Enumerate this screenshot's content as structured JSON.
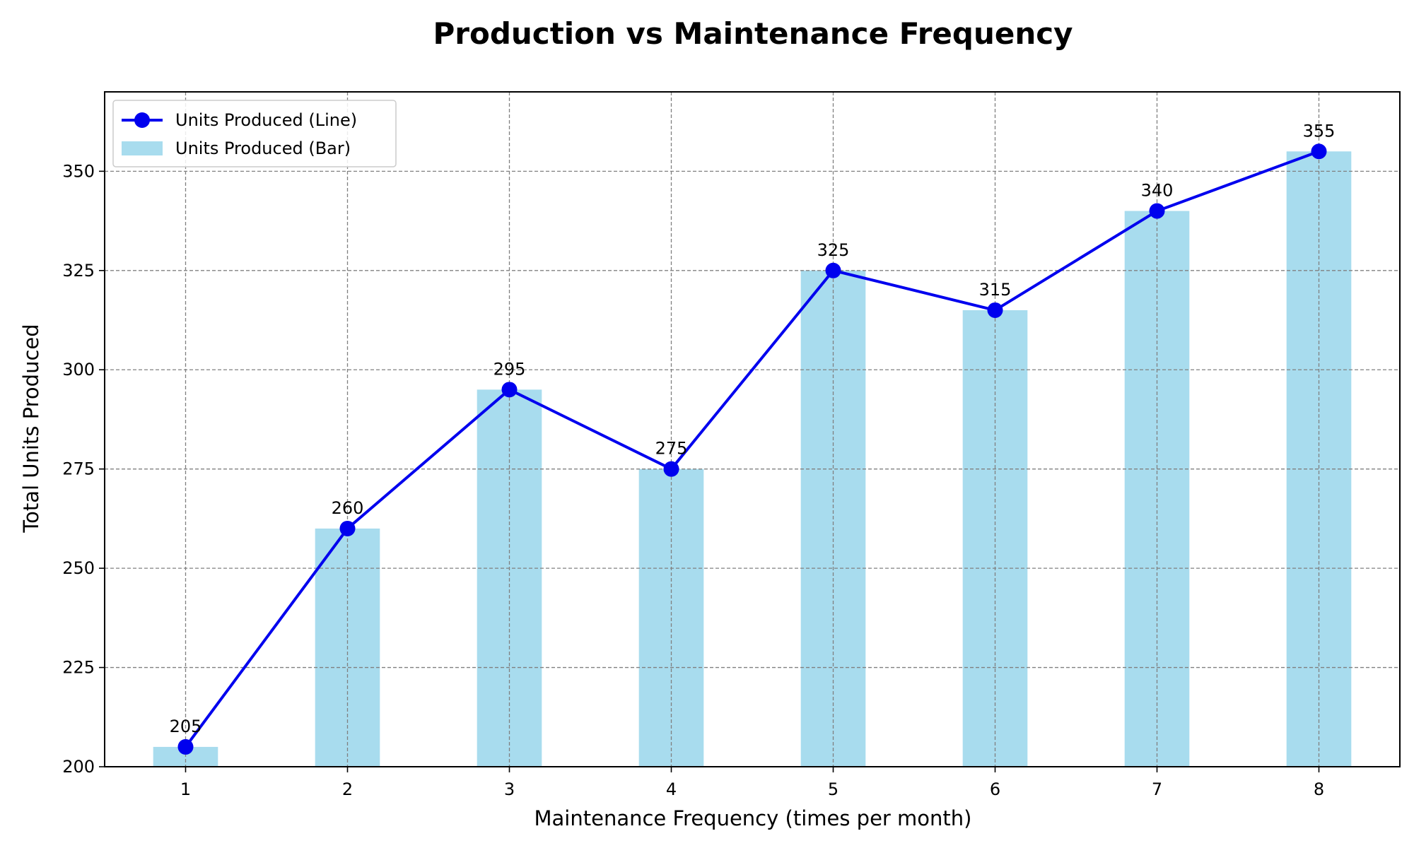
{
  "chart_data": {
    "type": "bar",
    "title": "Production vs Maintenance Frequency",
    "xlabel": "Maintenance Frequency (times per month)",
    "ylabel": "Total Units Produced",
    "categories": [
      "1",
      "2",
      "3",
      "4",
      "5",
      "6",
      "7",
      "8"
    ],
    "x": [
      1,
      2,
      3,
      4,
      5,
      6,
      7,
      8
    ],
    "series": [
      {
        "name": "Units Produced (Line)",
        "type": "line",
        "color": "#0000ee",
        "values": [
          205,
          260,
          295,
          275,
          325,
          315,
          340,
          355
        ]
      },
      {
        "name": "Units Produced (Bar)",
        "type": "bar",
        "color": "#a8dcee",
        "values": [
          205,
          260,
          295,
          275,
          325,
          315,
          340,
          355
        ]
      }
    ],
    "data_labels": [
      "205",
      "260",
      "295",
      "275",
      "325",
      "315",
      "340",
      "355"
    ],
    "ylim": [
      200,
      370
    ],
    "xlim": [
      0.5,
      8.5
    ],
    "yticks": [
      200,
      225,
      250,
      275,
      300,
      325,
      350
    ],
    "grid": true,
    "legend_position": "top-left"
  }
}
